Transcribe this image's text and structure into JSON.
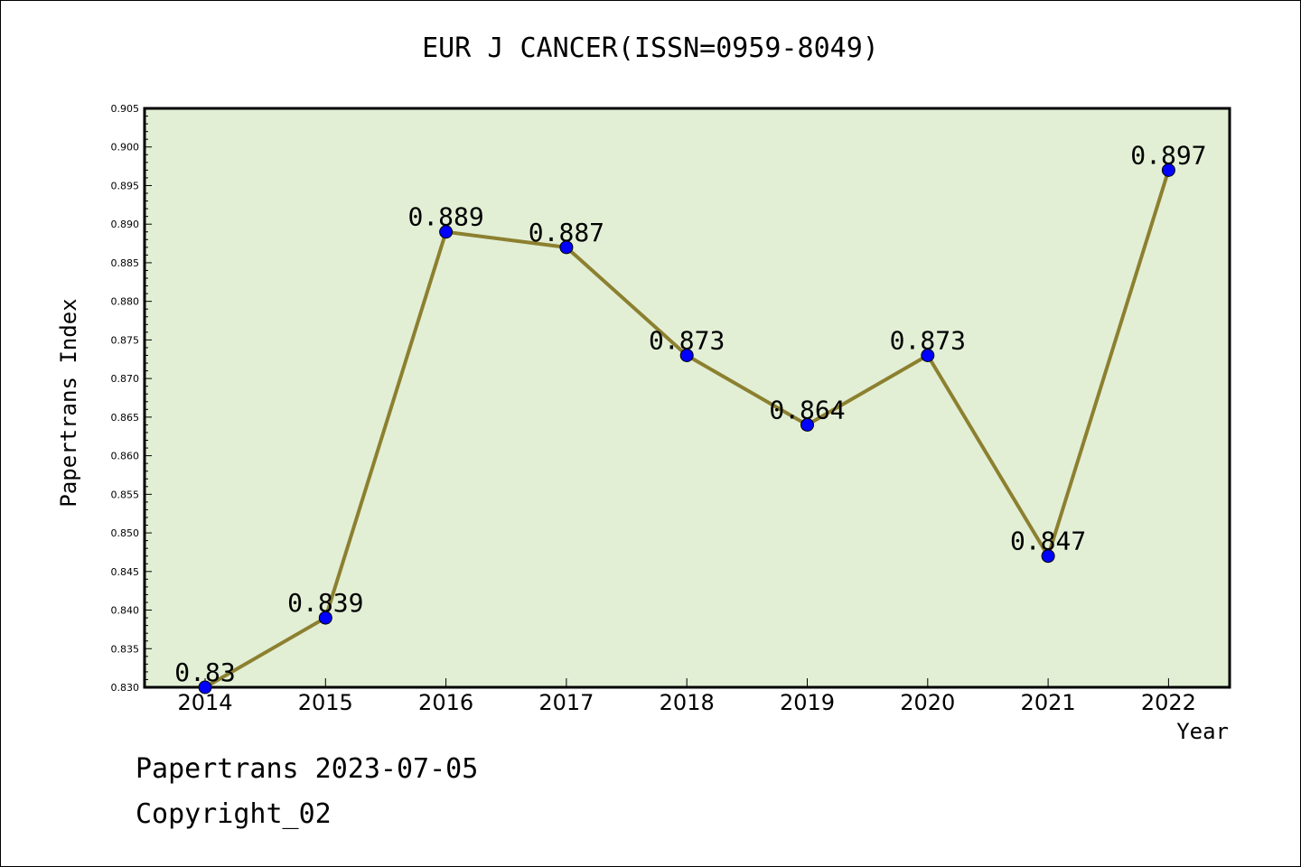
{
  "page": {
    "footer_date": "Papertrans 2023-07-05",
    "footer_copyright": "Copyright_02"
  },
  "chart_data": {
    "type": "line",
    "title": "EUR J CANCER(ISSN=0959-8049)",
    "xlabel": "Year",
    "ylabel": "Papertrans Index",
    "categories": [
      "2014",
      "2015",
      "2016",
      "2017",
      "2018",
      "2019",
      "2020",
      "2021",
      "2022"
    ],
    "values": [
      0.83,
      0.839,
      0.889,
      0.887,
      0.873,
      0.864,
      0.873,
      0.847,
      0.897
    ],
    "data_labels": [
      "0.83",
      "0.839",
      "0.889",
      "0.887",
      "0.873",
      "0.864",
      "0.873",
      "0.847",
      "0.897"
    ],
    "ylim": [
      0.83,
      0.905
    ],
    "yticks": [
      "0.830",
      "0.835",
      "0.840",
      "0.845",
      "0.850",
      "0.855",
      "0.860",
      "0.865",
      "0.870",
      "0.875",
      "0.880",
      "0.885",
      "0.890",
      "0.895",
      "0.900",
      "0.905"
    ],
    "grid": false,
    "colors": {
      "background": "#e2efd5",
      "line": "#8c8030",
      "marker": "#0000ff"
    }
  }
}
